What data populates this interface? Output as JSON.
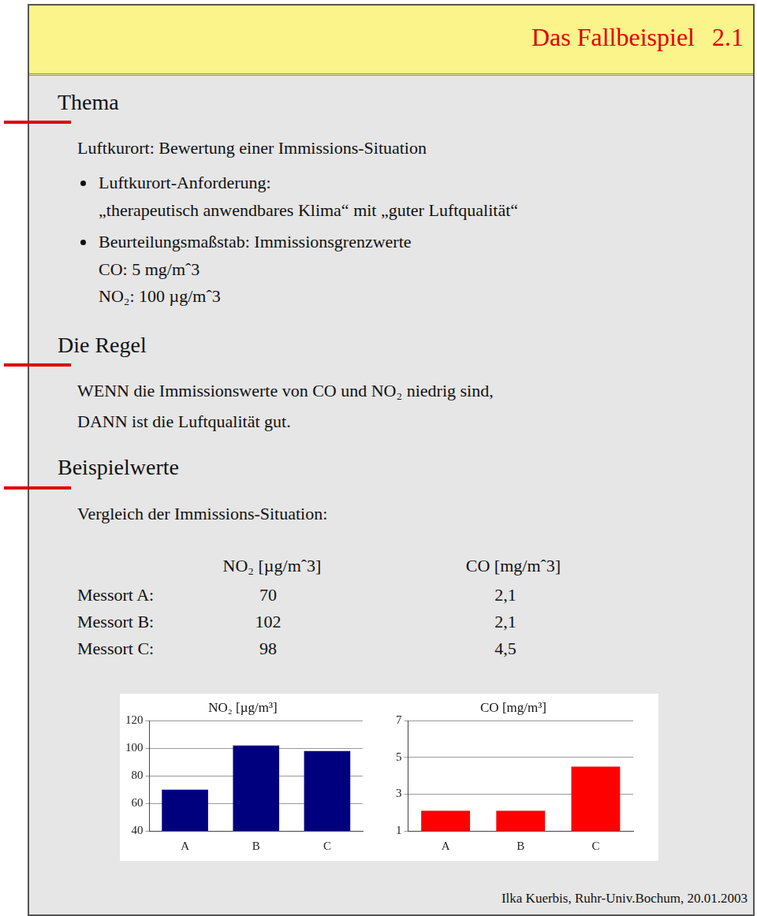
{
  "header": {
    "title": "Das Fallbeispiel",
    "number": "2.1"
  },
  "thema": {
    "heading": "Thema",
    "intro": "Luftkurort: Bewertung einer Immissions-Situation",
    "bullets": [
      {
        "text": "Luftkurort-Anforderung:",
        "lines": [
          "„therapeutisch anwendbares Klima“ mit „guter Luftqualität“"
        ]
      },
      {
        "text": "Beurteilungsmaßstab: Immissionsgrenzwerte",
        "lines": [
          "CO: 5 mg/mˆ3",
          "NO₂: 100 µg/mˆ3"
        ]
      }
    ]
  },
  "regel": {
    "heading": "Die Regel",
    "lines": [
      "WENN die Immissionswerte von CO und NO₂ niedrig sind,",
      "DANN ist die Luftqualität gut."
    ]
  },
  "beispielwerte": {
    "heading": "Beispielwerte",
    "intro": "Vergleich der Immissions-Situation:",
    "table": {
      "header": [
        "NO₂ [µg/mˆ3]",
        "CO [mg/mˆ3]"
      ],
      "rows": [
        {
          "label": "Messort A:",
          "values": [
            "70",
            "2,1"
          ]
        },
        {
          "label": "Messort B:",
          "values": [
            "102",
            "2,1"
          ]
        },
        {
          "label": "Messort C:",
          "values": [
            "98",
            "4,5"
          ]
        }
      ]
    }
  },
  "footer": "Ilka Kuerbis, Ruhr-Univ.Bochum, 20.01.2003",
  "chart_data": [
    {
      "type": "bar",
      "title": "NO₂ [µg/m³]",
      "categories": [
        "A",
        "B",
        "C"
      ],
      "values": [
        70,
        102,
        98
      ],
      "color": "#00007f",
      "ylim": [
        40,
        120
      ],
      "yticks": [
        40,
        60,
        80,
        100,
        120
      ],
      "grid": true
    },
    {
      "type": "bar",
      "title": "CO [mg/m³]",
      "categories": [
        "A",
        "B",
        "C"
      ],
      "values": [
        2.1,
        2.1,
        4.5
      ],
      "color": "#ff0000",
      "ylim": [
        1,
        7
      ],
      "yticks": [
        1,
        3,
        5,
        7
      ],
      "grid": true
    }
  ]
}
